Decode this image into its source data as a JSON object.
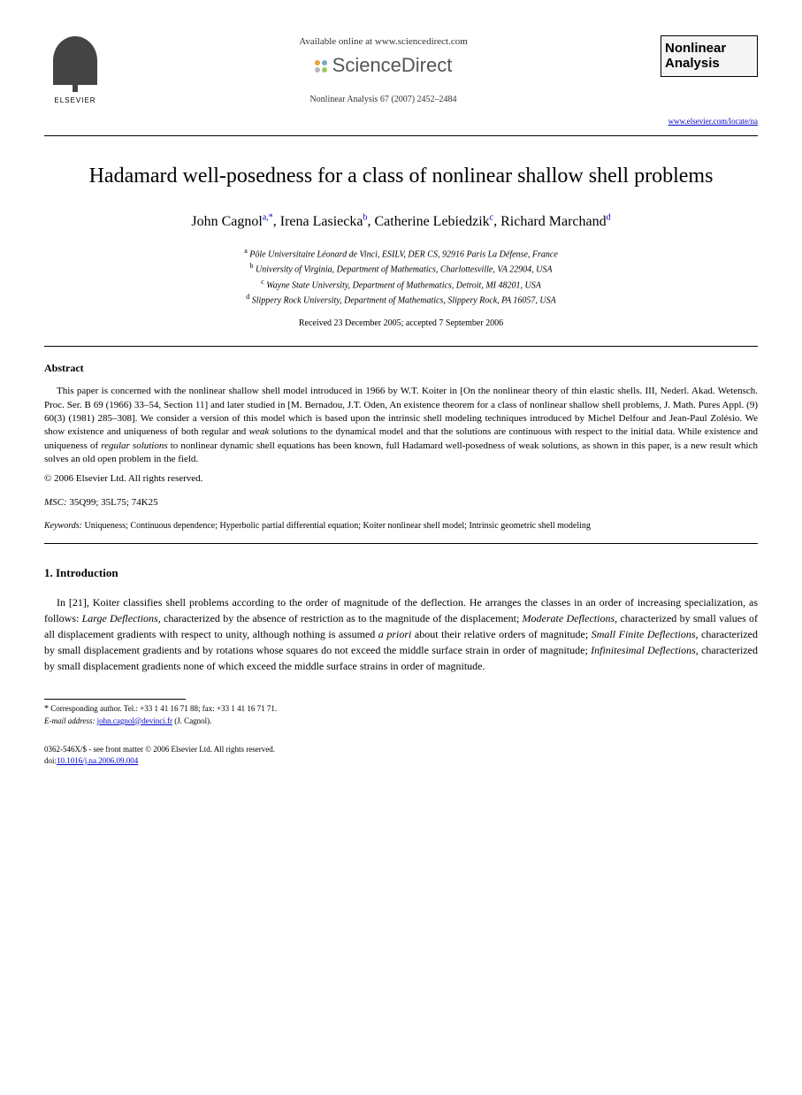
{
  "header": {
    "publisher": "ELSEVIER",
    "available_text": "Available online at www.sciencedirect.com",
    "sd_brand": "ScienceDirect",
    "journal_ref": "Nonlinear Analysis 67 (2007) 2452–2484",
    "journal_box_line1": "Nonlinear",
    "journal_box_line2": "Analysis",
    "journal_url": "www.elsevier.com/locate/na",
    "sd_dot_colors": [
      "#e8a33d",
      "#7aa8c9",
      "#b8b8b8",
      "#9acd5e"
    ]
  },
  "title": "Hadamard well-posedness for a class of nonlinear shallow shell problems",
  "authors": [
    {
      "name": "John Cagnol",
      "aff": "a,",
      "star": "*"
    },
    {
      "name": "Irena Lasiecka",
      "aff": "b"
    },
    {
      "name": "Catherine Lebiedzik",
      "aff": "c"
    },
    {
      "name": "Richard Marchand",
      "aff": "d"
    }
  ],
  "affiliations": [
    {
      "sup": "a",
      "text": "Pôle Universitaire Léonard de Vinci, ESILV, DER CS, 92916 Paris La Défense, France"
    },
    {
      "sup": "b",
      "text": "University of Virginia, Department of Mathematics, Charlottesville, VA 22904, USA"
    },
    {
      "sup": "c",
      "text": "Wayne State University, Department of Mathematics, Detroit, MI 48201, USA"
    },
    {
      "sup": "d",
      "text": "Slippery Rock University, Department of Mathematics, Slippery Rock, PA 16057, USA"
    }
  ],
  "dates": "Received 23 December 2005; accepted 7 September 2006",
  "abstract": {
    "heading": "Abstract",
    "text": "This paper is concerned with the nonlinear shallow shell model introduced in 1966 by W.T. Koiter in [On the nonlinear theory of thin elastic shells. III, Nederl. Akad. Wetensch. Proc. Ser. B 69 (1966) 33–54, Section 11] and later studied in [M. Bernadou, J.T. Oden, An existence theorem for a class of nonlinear shallow shell problems, J. Math. Pures Appl. (9) 60(3) (1981) 285–308]. We consider a version of this model which is based upon the intrinsic shell modeling techniques introduced by Michel Delfour and Jean-Paul Zolésio. We show existence and uniqueness of both regular and weak solutions to the dynamical model and that the solutions are continuous with respect to the initial data. While existence and uniqueness of regular solutions to nonlinear dynamic shell equations has been known, full Hadamard well-posedness of weak solutions, as shown in this paper, is a new result which solves an old open problem in the field.",
    "copyright": "© 2006 Elsevier Ltd. All rights reserved."
  },
  "msc": {
    "label": "MSC:",
    "codes": "35Q99; 35L75; 74K25"
  },
  "keywords": {
    "label": "Keywords:",
    "text": "Uniqueness; Continuous dependence; Hyperbolic partial differential equation; Koiter nonlinear shell model; Intrinsic geometric shell modeling"
  },
  "intro": {
    "heading": "1.  Introduction",
    "text": "In [21], Koiter classifies shell problems according to the order of magnitude of the deflection. He arranges the classes in an order of increasing specialization, as follows: Large Deflections, characterized by the absence of restriction as to the magnitude of the displacement; Moderate Deflections, characterized by small values of all displacement gradients with respect to unity, although nothing is assumed a priori about their relative orders of magnitude; Small Finite Deflections, characterized by small displacement gradients and by rotations whose squares do not exceed the middle surface strain in order of magnitude; Infinitesimal Deflections, characterized by small displacement gradients none of which exceed the middle surface strains in order of magnitude."
  },
  "footnote": {
    "corresponding": "Corresponding author. Tel.: +33 1 41 16 71 88; fax: +33 1 41 16 71 71.",
    "email_label": "E-mail address:",
    "email": "john.cagnol@devinci.fr",
    "email_name": "(J. Cagnol)."
  },
  "bottom": {
    "front_matter": "0362-546X/$ - see front matter © 2006 Elsevier Ltd. All rights reserved.",
    "doi_label": "doi:",
    "doi": "10.1016/j.na.2006.09.004"
  }
}
